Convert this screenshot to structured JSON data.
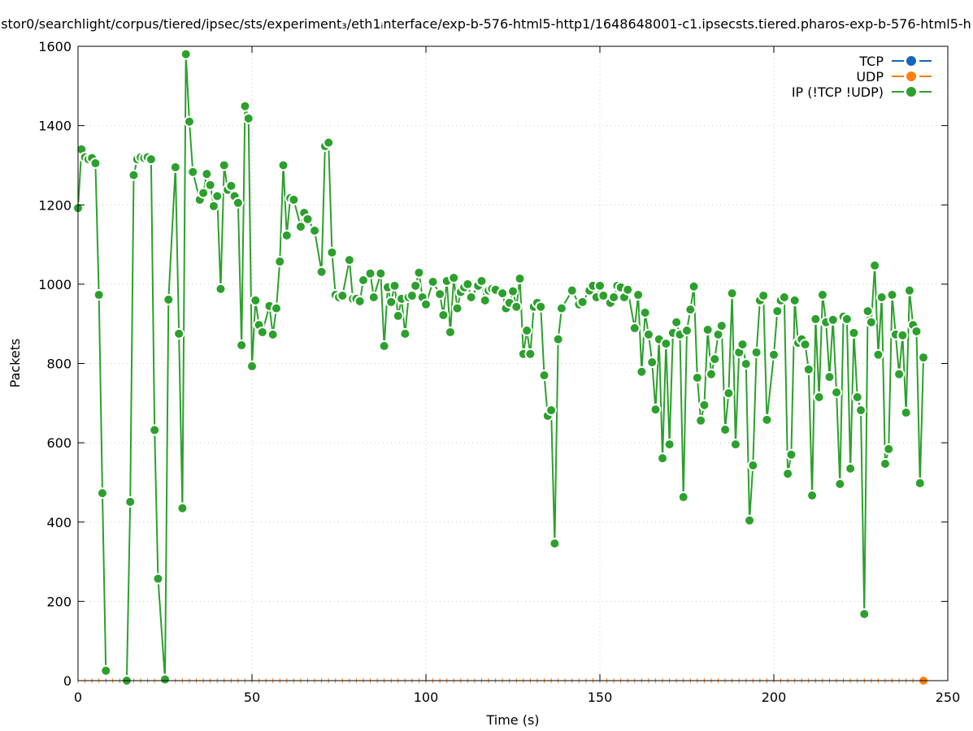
{
  "chart_data": {
    "type": "line",
    "title": "stor0/searchlight/corpus/tiered/ipsec/sts/experiment₃/eth1ᵢnterface/exp-b-576-html5-http1/1648648001-c1.ipsecsts.tiered.pharos-exp-b-576-html5-h",
    "xlabel": "Time (s)",
    "ylabel": "Packets",
    "xlim": [
      0,
      250
    ],
    "ylim": [
      0,
      1600
    ],
    "xticks": [
      0,
      50,
      100,
      150,
      200,
      250
    ],
    "yticks": [
      0,
      200,
      400,
      600,
      800,
      1000,
      1200,
      1400,
      1600
    ],
    "grid": true,
    "legend_position": "top-right",
    "series": [
      {
        "name": "TCP",
        "color": "#1565c0",
        "x": [],
        "y": []
      },
      {
        "name": "UDP",
        "color": "#ff7f0e",
        "x": [
          243
        ],
        "y": [
          0
        ]
      },
      {
        "name": "IP (!TCP  !UDP)",
        "color": "#2ca02c",
        "x": [
          0,
          1,
          2,
          3,
          4,
          5,
          6,
          7,
          8,
          9,
          14,
          15,
          16,
          17,
          18,
          19,
          20,
          21,
          22,
          23,
          25,
          26,
          28,
          29,
          30,
          31,
          32,
          33,
          35,
          36,
          37,
          38,
          39,
          40,
          41,
          42,
          43,
          44,
          45,
          46,
          47,
          48,
          49,
          50,
          51,
          52,
          53,
          55,
          56,
          57,
          58,
          59,
          60,
          61,
          62,
          64,
          65,
          66,
          68,
          70,
          71,
          72,
          73,
          74,
          75,
          76,
          78,
          79,
          80,
          81,
          82,
          84,
          85,
          87,
          88,
          89,
          90,
          91,
          92,
          93,
          94,
          95,
          96,
          97,
          98,
          99,
          100,
          102,
          104,
          105,
          106,
          107,
          108,
          109,
          110,
          111,
          112,
          113,
          115,
          116,
          117,
          118,
          119,
          120,
          122,
          123,
          124,
          125,
          126,
          127,
          128,
          129,
          130,
          131,
          132,
          133,
          134,
          135,
          136,
          137,
          138,
          139,
          142,
          144,
          145,
          147,
          148,
          149,
          150,
          151,
          153,
          154,
          155,
          156,
          157,
          158,
          160,
          161,
          162,
          163,
          164,
          165,
          166,
          167,
          168,
          169,
          170,
          171,
          172,
          173,
          174,
          175,
          176,
          177,
          178,
          179,
          180,
          181,
          182,
          183,
          184,
          185,
          186,
          187,
          188,
          189,
          190,
          191,
          192,
          193,
          194,
          195,
          196,
          197,
          198,
          200,
          201,
          202,
          203,
          204,
          205,
          206,
          207,
          208,
          209,
          210,
          211,
          212,
          213,
          214,
          215,
          216,
          217,
          218,
          219,
          220,
          221,
          222,
          223,
          224,
          225,
          226,
          227,
          228,
          229,
          230,
          231,
          232,
          233,
          234,
          235,
          236,
          237,
          238,
          239,
          240,
          241,
          242,
          243
        ],
        "y": [
          1192,
          1340,
          1320,
          1315,
          1318,
          1305,
          973,
          473,
          25,
          null,
          0,
          451,
          1275,
          1315,
          1320,
          1318,
          1320,
          1315,
          632,
          257,
          3,
          961,
          1295,
          875,
          435,
          1580,
          1410,
          1283,
          1213,
          1230,
          1278,
          1250,
          1197,
          1222,
          988,
          1300,
          1238,
          1248,
          1222,
          1205,
          846,
          1449,
          1418,
          793,
          959,
          897,
          879,
          945,
          873,
          939,
          1057,
          1300,
          1123,
          1217,
          1213,
          1145,
          1180,
          1164,
          1135,
          1031,
          1348,
          1357,
          1080,
          973,
          967,
          971,
          1061,
          963,
          963,
          957,
          1010,
          1027,
          967,
          1027,
          844,
          992,
          955,
          996,
          920,
          963,
          875,
          967,
          971,
          996,
          1029,
          967,
          949,
          1006,
          975,
          922,
          1008,
          879,
          1016,
          939,
          980,
          992,
          1000,
          967,
          996,
          1008,
          959,
          984,
          988,
          986,
          977,
          939,
          953,
          982,
          943,
          1014,
          824,
          883,
          824,
          943,
          953,
          943,
          770,
          668,
          682,
          346,
          861,
          939,
          984,
          949,
          955,
          984,
          996,
          967,
          996,
          971,
          953,
          967,
          996,
          992,
          967,
          986,
          889,
          973,
          779,
          928,
          873,
          803,
          684,
          861,
          561,
          850,
          596,
          877,
          904,
          873,
          463,
          883,
          936,
          994,
          764,
          656,
          695,
          885,
          773,
          811,
          873,
          895,
          633,
          725,
          977,
          596,
          828,
          848,
          799,
          404,
          543,
          828,
          959,
          971,
          658,
          822,
          932,
          959,
          967,
          522,
          570,
          959,
          852,
          861,
          848,
          785,
          467,
          912,
          715,
          973,
          904,
          766,
          910,
          727,
          496,
          918,
          912,
          535,
          877,
          715,
          682,
          168,
          932,
          904,
          1047,
          822,
          967,
          547,
          584,
          973,
          873,
          773,
          871,
          676,
          984,
          897,
          881,
          498,
          815
        ]
      }
    ]
  }
}
